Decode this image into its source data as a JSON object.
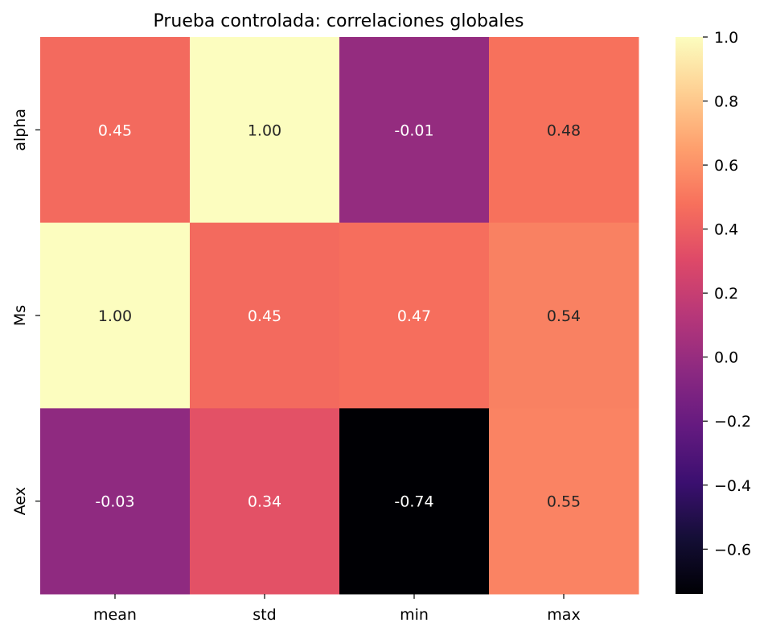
{
  "chart_data": {
    "type": "heatmap",
    "title": "Prueba controlada: correlaciones globales",
    "x_categories": [
      "mean",
      "std",
      "min",
      "max"
    ],
    "y_categories": [
      "alpha",
      "Ms",
      "Aex"
    ],
    "values": [
      [
        0.45,
        1.0,
        -0.01,
        0.48
      ],
      [
        1.0,
        0.45,
        0.47,
        0.54
      ],
      [
        -0.03,
        0.34,
        -0.74,
        0.55
      ]
    ],
    "value_labels": [
      [
        "0.45",
        "1.00",
        "-0.01",
        "0.48"
      ],
      [
        "1.00",
        "0.45",
        "0.47",
        "0.54"
      ],
      [
        "-0.03",
        "0.34",
        "-0.74",
        "0.55"
      ]
    ],
    "colormap": "magma",
    "colorbar": {
      "vmin": -0.74,
      "vmax": 1.0,
      "ticks": [
        1.0,
        0.8,
        0.6,
        0.4,
        0.2,
        0.0,
        -0.2,
        -0.4,
        -0.6
      ],
      "tick_labels": [
        "1.0",
        "0.8",
        "0.6",
        "0.4",
        "0.2",
        "0.0",
        "−0.2",
        "−0.4",
        "−0.6"
      ]
    }
  }
}
